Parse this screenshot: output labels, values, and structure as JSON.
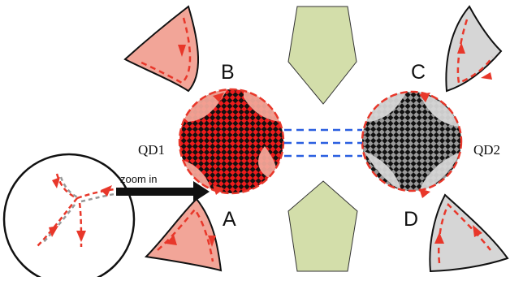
{
  "labels": {
    "lead_b": "B",
    "lead_c": "C",
    "lead_a": "A",
    "lead_d": "D",
    "qd1": "QD1",
    "qd2": "QD2",
    "zoom": "zoom in"
  },
  "colors": {
    "edge_lead_red": "#f2a598",
    "edge_lead_gray": "#d6d6d6",
    "gate_green": "#d3deaa",
    "arrow_red": "#e8372a",
    "dot_checker_red": "#ee1c1c",
    "dot_checker_gray": "#8a8a8a",
    "coupling_blue": "#2a5fe0"
  },
  "icons": {
    "edge_arrow": "red-arrowhead-icon",
    "zoom_arrow": "black-arrow-icon"
  }
}
